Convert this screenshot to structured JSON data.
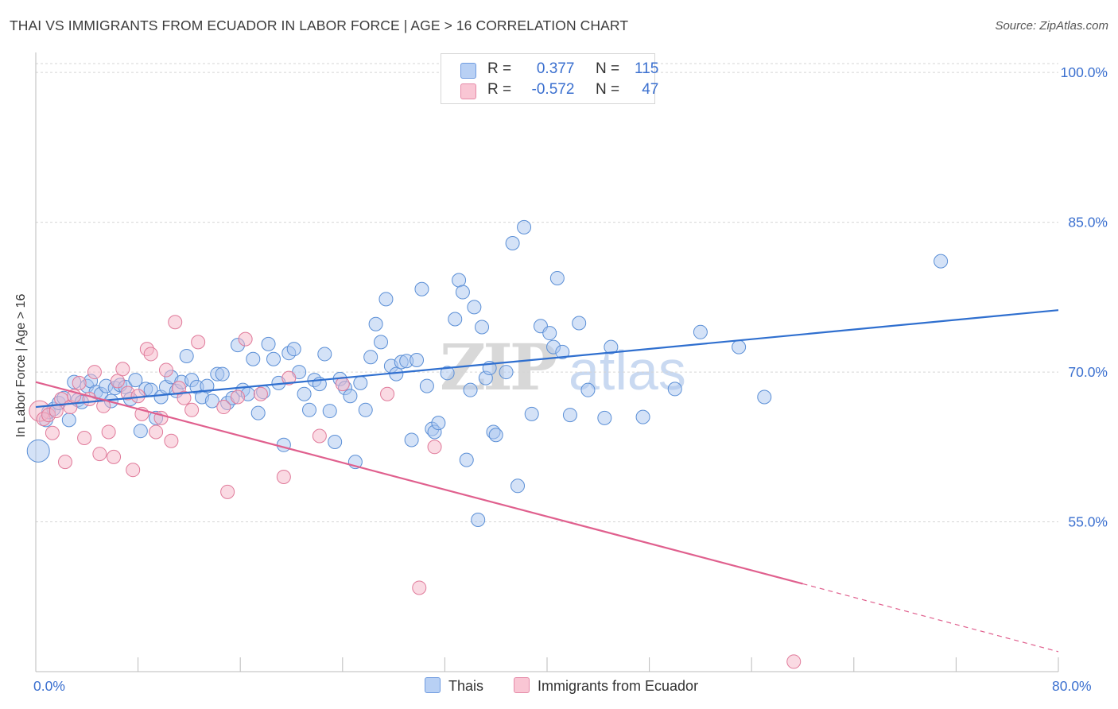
{
  "header": {
    "title": "THAI VS IMMIGRANTS FROM ECUADOR IN LABOR FORCE | AGE > 16 CORRELATION CHART",
    "source": "Source: ZipAtlas.com"
  },
  "legend": {
    "r_label": "R =",
    "n_label": "N =",
    "rows": [
      {
        "r": "0.377",
        "n": "115"
      },
      {
        "r": "-0.572",
        "n": "47"
      }
    ]
  },
  "watermark": {
    "zip": "ZIP",
    "atlas": "atlas"
  },
  "colors": {
    "blue_fill": "#a9c6f0",
    "blue_stroke": "#5b8fd6",
    "blue_line": "#2f6fcf",
    "pink_fill": "#f6b6c8",
    "pink_stroke": "#e07a9a",
    "pink_line": "#e0608e",
    "tick_label": "#3a6fcf"
  },
  "chart_data": {
    "type": "scatter",
    "title": "THAI VS IMMIGRANTS FROM ECUADOR IN LABOR FORCE | AGE > 16 CORRELATION CHART",
    "xlabel": "",
    "ylabel": "In Labor Force | Age > 16",
    "xlim": [
      0,
      80
    ],
    "ylim": [
      40,
      102
    ],
    "x_tick_labels": [
      "0.0%",
      "80.0%"
    ],
    "y_ticks": [
      55,
      70,
      85,
      100
    ],
    "y_tick_labels": [
      "55.0%",
      "70.0%",
      "85.0%",
      "100.0%"
    ],
    "grid": "horizontal dashed",
    "legend_position": "top-center",
    "series": [
      {
        "name": "Thais",
        "r": 0.377,
        "n": 115,
        "trend": {
          "x0": 0,
          "y0": 66.5,
          "x1": 80,
          "y1": 76.2
        },
        "points": [
          [
            0.2,
            62.1
          ],
          [
            0.8,
            65.2
          ],
          [
            1.0,
            66.0
          ],
          [
            1.4,
            66.3
          ],
          [
            1.8,
            66.9
          ],
          [
            2.2,
            67.4
          ],
          [
            2.6,
            65.2
          ],
          [
            3.0,
            69.0
          ],
          [
            3.3,
            67.2
          ],
          [
            3.6,
            67.0
          ],
          [
            4.0,
            68.6
          ],
          [
            4.3,
            69.1
          ],
          [
            4.7,
            68.0
          ],
          [
            5.1,
            67.8
          ],
          [
            5.5,
            68.6
          ],
          [
            5.9,
            67.1
          ],
          [
            6.2,
            68.4
          ],
          [
            6.6,
            68.7
          ],
          [
            7.0,
            68.5
          ],
          [
            7.4,
            67.3
          ],
          [
            7.8,
            69.2
          ],
          [
            8.2,
            64.1
          ],
          [
            8.6,
            68.3
          ],
          [
            9.0,
            68.2
          ],
          [
            9.4,
            65.4
          ],
          [
            9.8,
            67.5
          ],
          [
            10.2,
            68.5
          ],
          [
            10.6,
            69.5
          ],
          [
            11.0,
            68.1
          ],
          [
            11.4,
            69.0
          ],
          [
            11.8,
            71.6
          ],
          [
            12.2,
            69.2
          ],
          [
            12.6,
            68.5
          ],
          [
            13.0,
            67.5
          ],
          [
            13.4,
            68.6
          ],
          [
            13.8,
            67.1
          ],
          [
            14.2,
            69.8
          ],
          [
            14.6,
            69.8
          ],
          [
            15.0,
            66.9
          ],
          [
            15.4,
            67.4
          ],
          [
            15.8,
            72.7
          ],
          [
            16.2,
            68.2
          ],
          [
            16.6,
            67.8
          ],
          [
            17.0,
            71.3
          ],
          [
            17.4,
            65.9
          ],
          [
            17.8,
            68.0
          ],
          [
            18.2,
            72.8
          ],
          [
            18.6,
            71.3
          ],
          [
            19.0,
            68.9
          ],
          [
            19.4,
            62.7
          ],
          [
            19.8,
            71.9
          ],
          [
            20.2,
            72.3
          ],
          [
            20.6,
            70.0
          ],
          [
            21.0,
            67.8
          ],
          [
            21.4,
            66.2
          ],
          [
            21.8,
            69.2
          ],
          [
            22.2,
            68.8
          ],
          [
            22.6,
            71.8
          ],
          [
            23.0,
            66.1
          ],
          [
            23.4,
            63.0
          ],
          [
            23.8,
            69.3
          ],
          [
            24.2,
            68.4
          ],
          [
            24.6,
            67.6
          ],
          [
            25.0,
            61.0
          ],
          [
            25.4,
            68.9
          ],
          [
            25.8,
            66.2
          ],
          [
            26.2,
            71.5
          ],
          [
            26.6,
            74.8
          ],
          [
            27.0,
            73.0
          ],
          [
            27.4,
            77.3
          ],
          [
            27.8,
            70.6
          ],
          [
            28.2,
            69.8
          ],
          [
            28.6,
            71.0
          ],
          [
            29.0,
            71.1
          ],
          [
            29.4,
            63.2
          ],
          [
            29.8,
            71.2
          ],
          [
            30.2,
            78.3
          ],
          [
            30.6,
            68.6
          ],
          [
            31.0,
            64.3
          ],
          [
            31.2,
            64.0
          ],
          [
            31.5,
            64.9
          ],
          [
            32.2,
            69.9
          ],
          [
            32.8,
            75.3
          ],
          [
            33.1,
            79.2
          ],
          [
            33.4,
            78.0
          ],
          [
            33.7,
            61.2
          ],
          [
            34.0,
            68.2
          ],
          [
            34.3,
            76.5
          ],
          [
            34.6,
            55.2
          ],
          [
            34.9,
            74.5
          ],
          [
            35.2,
            69.4
          ],
          [
            35.5,
            70.4
          ],
          [
            35.8,
            64.0
          ],
          [
            36.0,
            63.7
          ],
          [
            36.8,
            70.0
          ],
          [
            37.3,
            82.9
          ],
          [
            37.7,
            58.6
          ],
          [
            38.2,
            84.5
          ],
          [
            38.8,
            65.8
          ],
          [
            39.5,
            74.6
          ],
          [
            40.2,
            73.9
          ],
          [
            40.5,
            72.5
          ],
          [
            40.8,
            79.4
          ],
          [
            41.2,
            72.0
          ],
          [
            41.8,
            65.7
          ],
          [
            42.5,
            74.9
          ],
          [
            43.2,
            68.2
          ],
          [
            44.5,
            65.4
          ],
          [
            45.0,
            72.5
          ],
          [
            47.5,
            65.5
          ],
          [
            50.0,
            68.3
          ],
          [
            52.0,
            74.0
          ],
          [
            55.0,
            72.5
          ],
          [
            57.0,
            67.5
          ],
          [
            70.8,
            81.1
          ]
        ]
      },
      {
        "name": "Immigrants from Ecuador",
        "r": -0.572,
        "n": 47,
        "trend": {
          "x0": 0,
          "y0": 69.0,
          "x1": 60,
          "y1": 48.8
        },
        "trend_dashed_to": {
          "x": 80,
          "y": 42.0
        },
        "points": [
          [
            0.3,
            66.1
          ],
          [
            0.6,
            65.3
          ],
          [
            1.0,
            65.7
          ],
          [
            1.3,
            63.9
          ],
          [
            1.6,
            66.1
          ],
          [
            2.0,
            67.3
          ],
          [
            2.3,
            61.0
          ],
          [
            2.7,
            66.5
          ],
          [
            3.0,
            67.6
          ],
          [
            3.4,
            68.9
          ],
          [
            3.8,
            63.4
          ],
          [
            4.2,
            67.3
          ],
          [
            4.6,
            70.0
          ],
          [
            5.0,
            61.8
          ],
          [
            5.3,
            66.6
          ],
          [
            5.7,
            64.0
          ],
          [
            6.1,
            61.5
          ],
          [
            6.4,
            69.1
          ],
          [
            6.8,
            70.3
          ],
          [
            7.2,
            67.9
          ],
          [
            7.6,
            60.2
          ],
          [
            8.0,
            67.6
          ],
          [
            8.3,
            65.8
          ],
          [
            8.7,
            72.3
          ],
          [
            9.0,
            71.8
          ],
          [
            9.4,
            64.0
          ],
          [
            9.8,
            65.4
          ],
          [
            10.2,
            70.2
          ],
          [
            10.6,
            63.1
          ],
          [
            10.9,
            75.0
          ],
          [
            11.2,
            68.4
          ],
          [
            11.6,
            67.4
          ],
          [
            12.2,
            66.2
          ],
          [
            12.7,
            73.0
          ],
          [
            14.7,
            66.5
          ],
          [
            15.0,
            58.0
          ],
          [
            15.8,
            67.5
          ],
          [
            16.4,
            73.3
          ],
          [
            17.6,
            67.8
          ],
          [
            19.4,
            59.5
          ],
          [
            19.8,
            69.4
          ],
          [
            22.2,
            63.6
          ],
          [
            24.0,
            68.8
          ],
          [
            27.5,
            67.8
          ],
          [
            30.0,
            48.4
          ],
          [
            31.2,
            62.5
          ],
          [
            59.3,
            41.0
          ]
        ]
      }
    ]
  }
}
